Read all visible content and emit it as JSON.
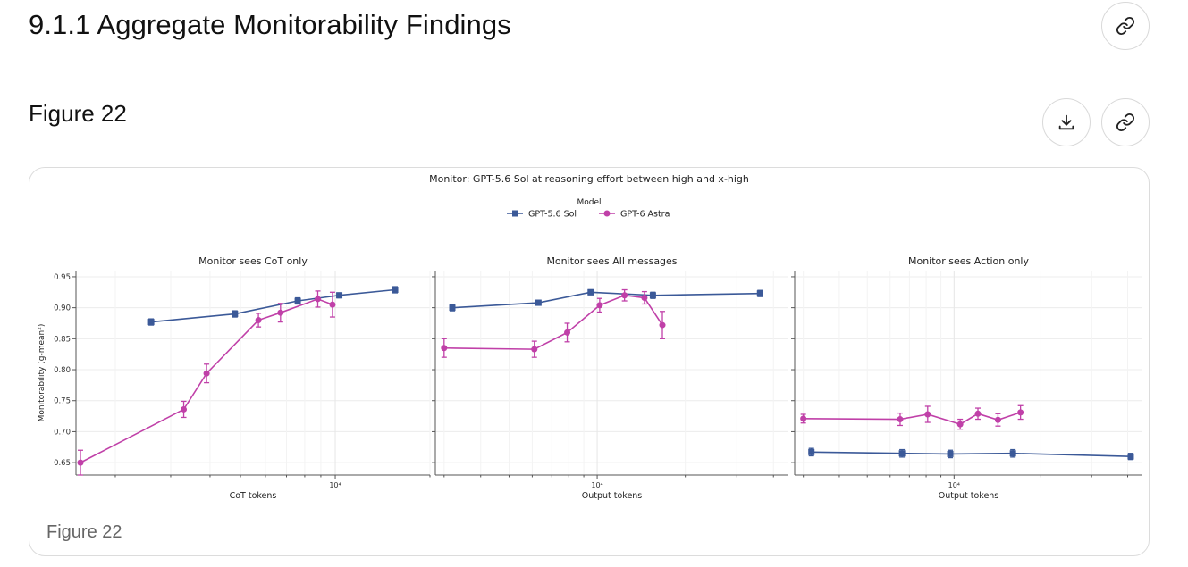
{
  "section": {
    "title": "9.1.1 Aggregate Monitorability Findings"
  },
  "figure": {
    "heading": "Figure 22",
    "caption": "Figure 22"
  },
  "icons": {
    "link": "link-icon",
    "download": "download-icon"
  },
  "chart_data": {
    "type": "line",
    "title": "Monitor: GPT-5.6 Sol at reasoning effort between high and x-high",
    "legend_title": "Model",
    "legend_position": "top-center",
    "ylabel": "Monitorability (g-mean²)",
    "ylim": [
      0.63,
      0.96
    ],
    "yticks": [
      "0.95",
      "0.90",
      "0.85",
      "0.80",
      "0.75",
      "0.70",
      "0.65"
    ],
    "x_scale": "log",
    "series_styles": [
      {
        "name": "GPT-5.6 Sol",
        "color": "#3b5998",
        "marker": "square"
      },
      {
        "name": "GPT-6 Astra",
        "color": "#c040a8",
        "marker": "circle"
      }
    ],
    "panels": [
      {
        "title": "Monitor sees CoT only",
        "xlabel": "CoT tokens",
        "xtick_label": "10⁴",
        "xlim": [
          1500,
          20000
        ],
        "series": [
          {
            "name": "GPT-5.6 Sol",
            "x": [
              2600,
              4800,
              7600,
              10300,
              15500
            ],
            "y": [
              0.877,
              0.89,
              0.911,
              0.92,
              0.929
            ],
            "err": [
              0.005,
              0.005,
              0.005,
              0.004,
              0.005
            ]
          },
          {
            "name": "GPT-6 Astra",
            "x": [
              1550,
              3300,
              3900,
              5700,
              6700,
              8800,
              9800
            ],
            "y": [
              0.65,
              0.736,
              0.794,
              0.88,
              0.892,
              0.914,
              0.905
            ],
            "err": [
              0.02,
              0.013,
              0.015,
              0.011,
              0.015,
              0.013,
              0.02
            ]
          }
        ]
      },
      {
        "title": "Monitor sees All messages",
        "xlabel": "Output tokens",
        "xtick_label": "10⁴",
        "xlim": [
          2800,
          45000
        ],
        "series": [
          {
            "name": "GPT-5.6 Sol",
            "x": [
              3200,
              6300,
              9500,
              15500,
              36000
            ],
            "y": [
              0.9,
              0.908,
              0.925,
              0.92,
              0.923
            ],
            "err": [
              0.005,
              0.004,
              0.004,
              0.005,
              0.005
            ]
          },
          {
            "name": "GPT-6 Astra",
            "x": [
              3000,
              6100,
              7900,
              10200,
              12400,
              14500,
              16700
            ],
            "y": [
              0.835,
              0.833,
              0.86,
              0.904,
              0.92,
              0.916,
              0.872
            ],
            "err": [
              0.015,
              0.013,
              0.015,
              0.011,
              0.009,
              0.01,
              0.022
            ]
          }
        ]
      },
      {
        "title": "Monitor sees Action only",
        "xlabel": "Output tokens",
        "xtick_label": "10⁴",
        "xlim": [
          2800,
          45000
        ],
        "series": [
          {
            "name": "GPT-5.6 Sol",
            "x": [
              3200,
              6600,
              9700,
              16000,
              41000
            ],
            "y": [
              0.667,
              0.665,
              0.664,
              0.665,
              0.66
            ],
            "err": [
              0.006,
              0.006,
              0.006,
              0.006,
              0.005
            ]
          },
          {
            "name": "GPT-6 Astra",
            "x": [
              3000,
              6500,
              8100,
              10500,
              12100,
              14200,
              17000
            ],
            "y": [
              0.721,
              0.72,
              0.728,
              0.712,
              0.729,
              0.719,
              0.731
            ],
            "err": [
              0.007,
              0.01,
              0.013,
              0.008,
              0.009,
              0.01,
              0.011
            ]
          }
        ]
      }
    ]
  }
}
